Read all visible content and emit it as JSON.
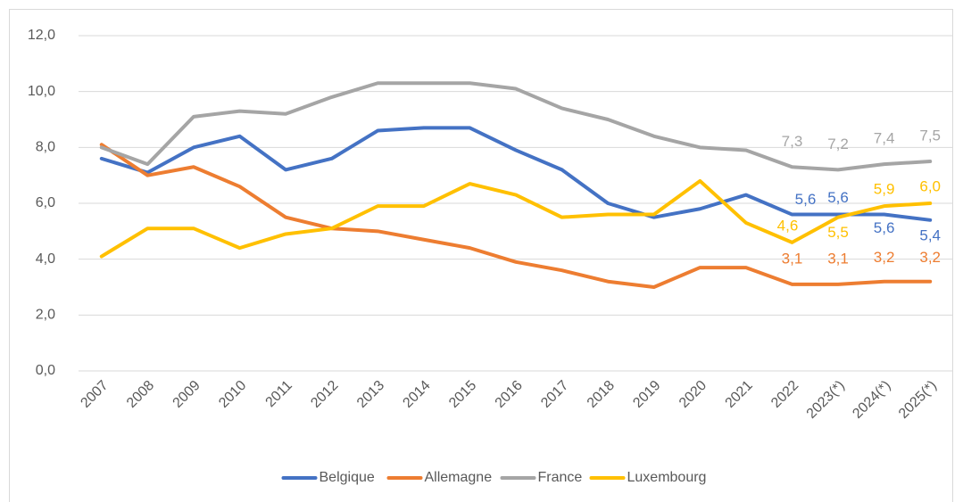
{
  "chart_data": {
    "type": "line",
    "categories": [
      "2007",
      "2008",
      "2009",
      "2010",
      "2011",
      "2012",
      "2013",
      "2014",
      "2015",
      "2016",
      "2017",
      "2018",
      "2019",
      "2020",
      "2021",
      "2022",
      "2023(*)",
      "2024(*)",
      "2025(*)"
    ],
    "series": [
      {
        "name": "Belgique",
        "color": "#4472c4",
        "values": [
          7.6,
          7.1,
          8.0,
          8.4,
          7.2,
          7.6,
          8.6,
          8.7,
          8.7,
          7.9,
          7.2,
          6.0,
          5.5,
          5.8,
          6.3,
          5.6,
          5.6,
          5.6,
          5.4
        ],
        "value_labels": [
          null,
          null,
          null,
          null,
          null,
          null,
          null,
          null,
          null,
          null,
          null,
          null,
          null,
          null,
          null,
          "5,6",
          "5,6",
          "5,6",
          "5,4"
        ]
      },
      {
        "name": "Allemagne",
        "color": "#ed7d31",
        "values": [
          8.1,
          7.0,
          7.3,
          6.6,
          5.5,
          5.1,
          5.0,
          4.7,
          4.4,
          3.9,
          3.6,
          3.2,
          3.0,
          3.7,
          3.7,
          3.1,
          3.1,
          3.2,
          3.2
        ],
        "value_labels": [
          null,
          null,
          null,
          null,
          null,
          null,
          null,
          null,
          null,
          null,
          null,
          null,
          null,
          null,
          null,
          "3,1",
          "3,1",
          "3,2",
          "3,2"
        ]
      },
      {
        "name": "France",
        "color": "#a5a5a5",
        "values": [
          8.0,
          7.4,
          9.1,
          9.3,
          9.2,
          9.8,
          10.3,
          10.3,
          10.3,
          10.1,
          9.4,
          9.0,
          8.4,
          8.0,
          7.9,
          7.3,
          7.2,
          7.4,
          7.5
        ],
        "value_labels": [
          null,
          null,
          null,
          null,
          null,
          null,
          null,
          null,
          null,
          null,
          null,
          null,
          null,
          null,
          null,
          "7,3",
          "7,2",
          "7,4",
          "7,5"
        ]
      },
      {
        "name": "Luxembourg",
        "color": "#ffc000",
        "values": [
          4.1,
          5.1,
          5.1,
          4.4,
          4.9,
          5.1,
          5.9,
          5.9,
          6.7,
          6.3,
          5.5,
          5.6,
          5.6,
          6.8,
          5.3,
          4.6,
          5.5,
          5.9,
          6.0
        ],
        "value_labels": [
          null,
          null,
          null,
          null,
          null,
          null,
          null,
          null,
          null,
          null,
          null,
          null,
          null,
          null,
          null,
          "4,6",
          "5,5",
          "5,9",
          "6,0"
        ]
      }
    ],
    "ylim": [
      0,
      12
    ],
    "yticks": [
      {
        "value": 0,
        "label": "0,0"
      },
      {
        "value": 2,
        "label": "2,0"
      },
      {
        "value": 4,
        "label": "4,0"
      },
      {
        "value": 6,
        "label": "6,0"
      },
      {
        "value": 8,
        "label": "8,0"
      },
      {
        "value": 10,
        "label": "10,0"
      },
      {
        "value": 12,
        "label": "12,0"
      }
    ],
    "grid": true,
    "legend": "bottom"
  }
}
